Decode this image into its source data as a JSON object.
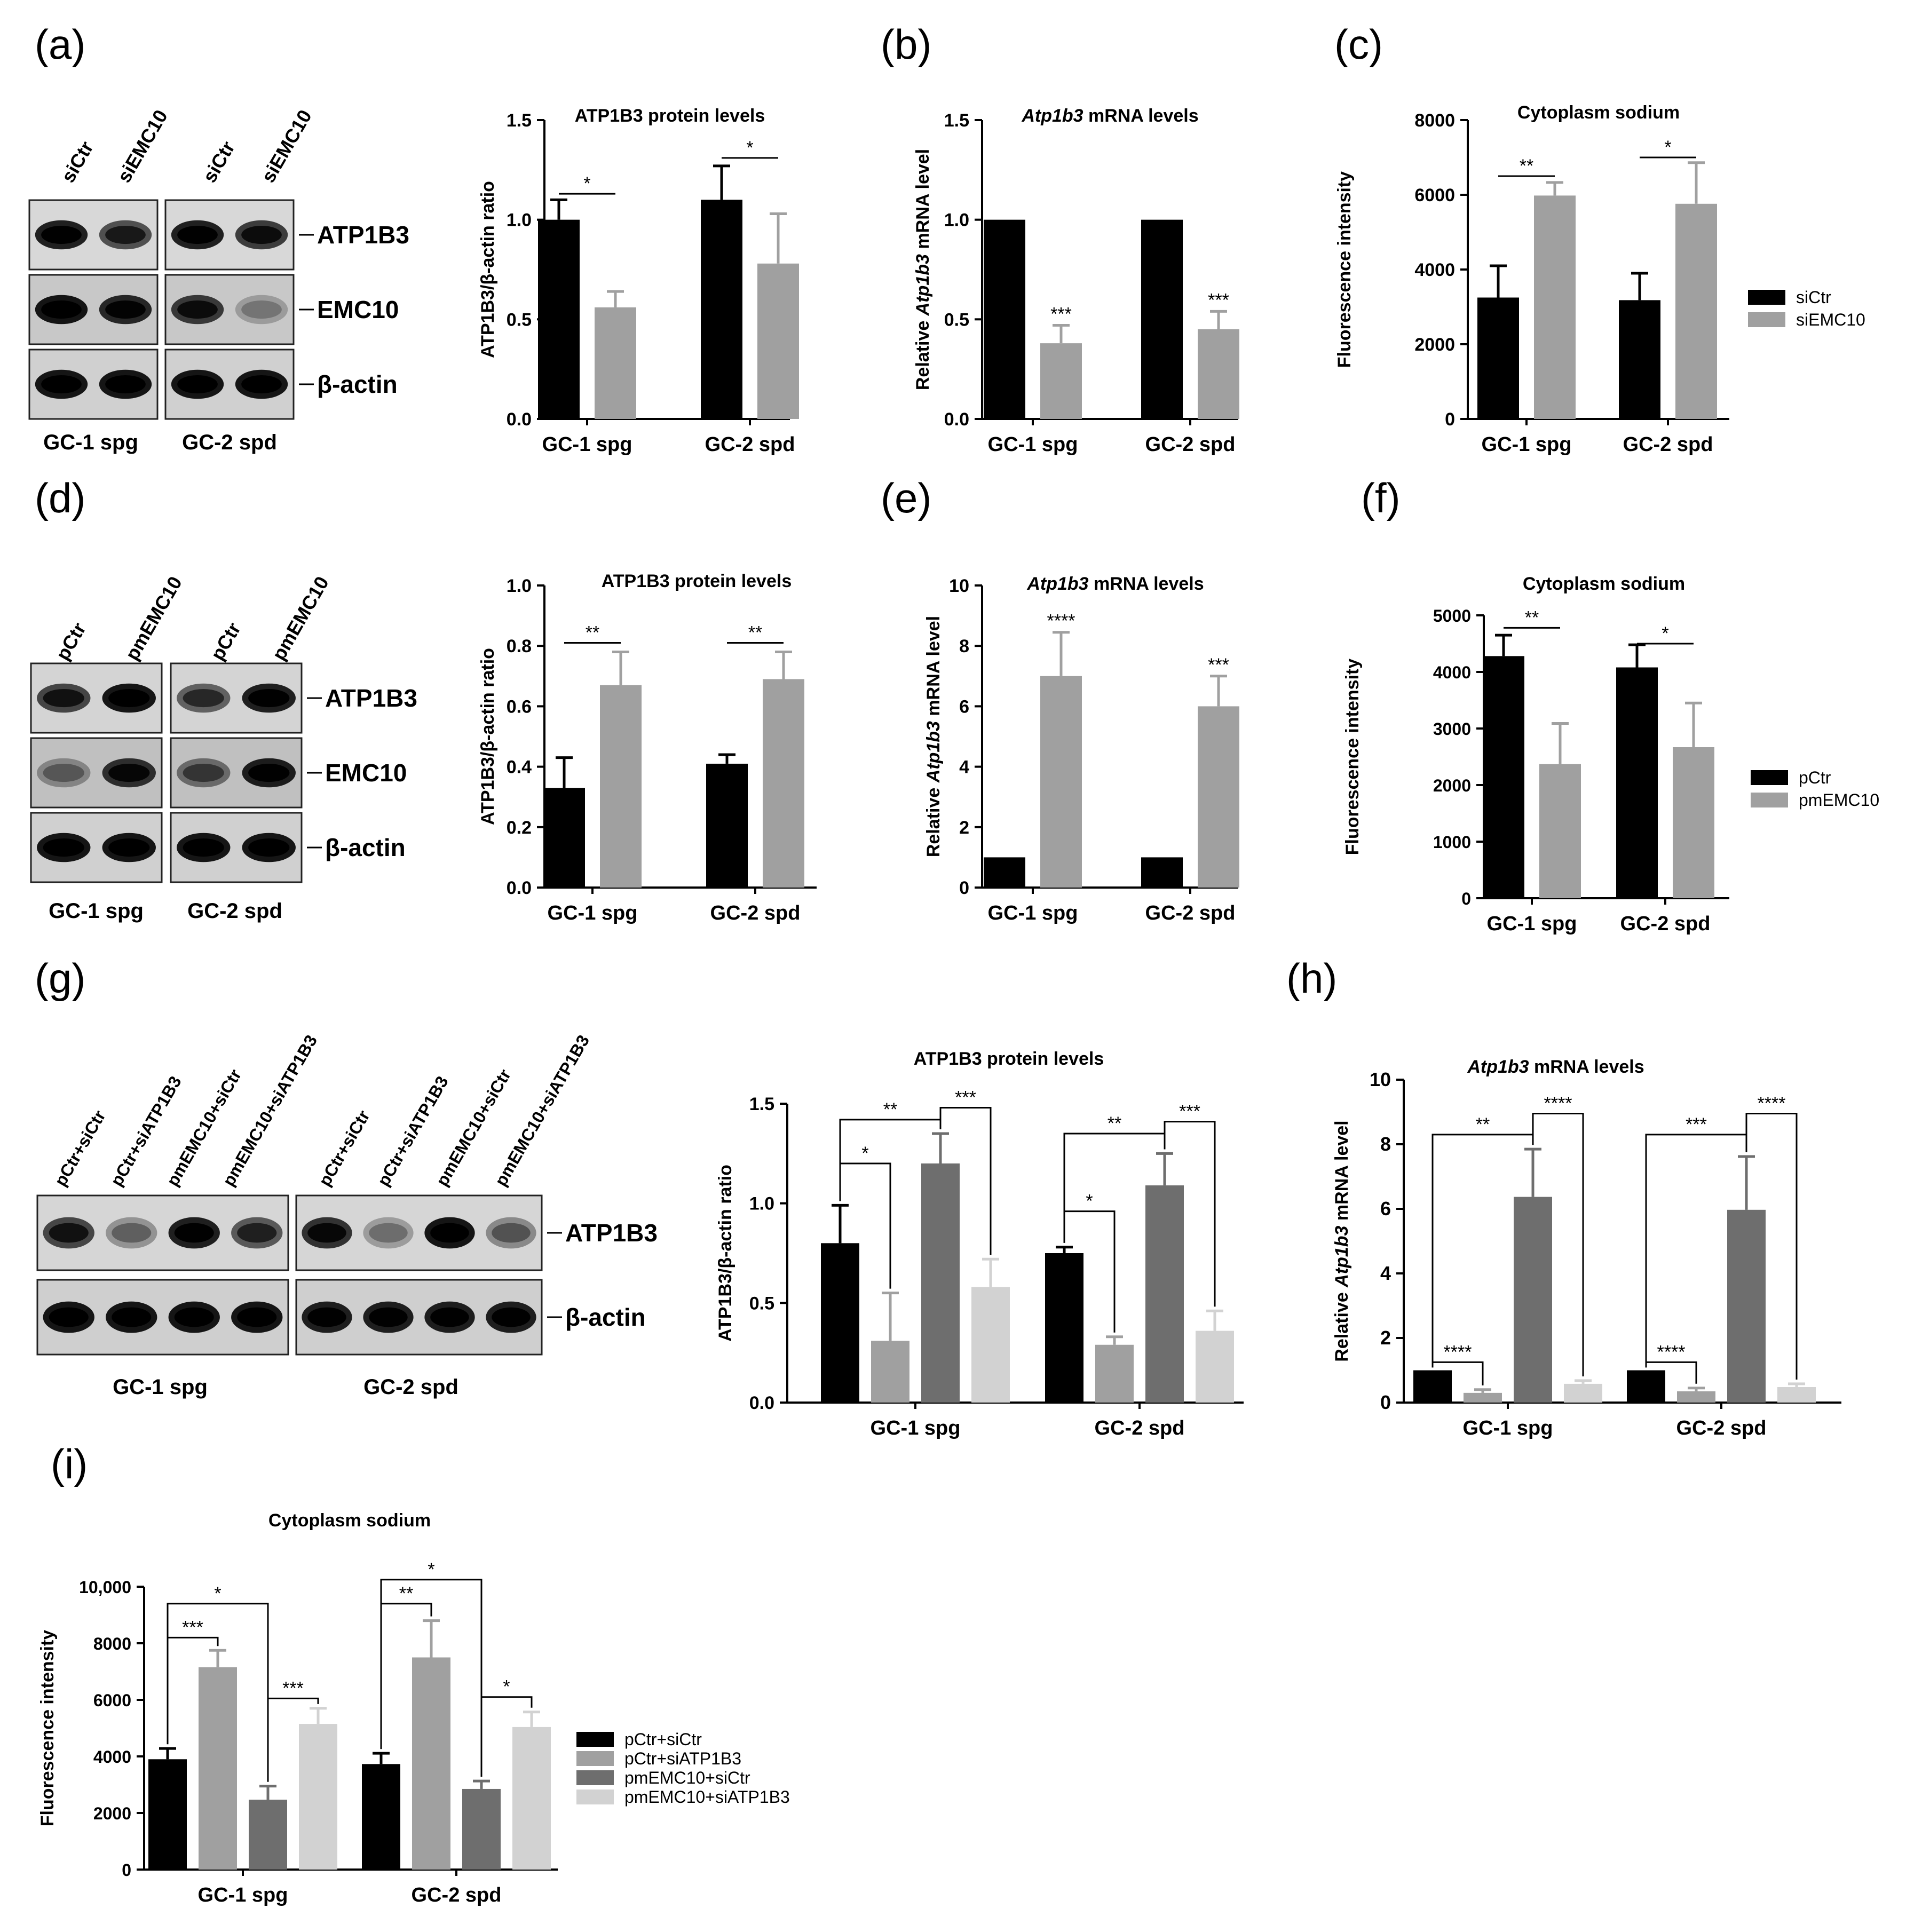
{
  "panel_labels": [
    "(a)",
    "(b)",
    "(c)",
    "(d)",
    "(e)",
    "(f)",
    "(g)",
    "(h)",
    "(i)"
  ],
  "blots": {
    "a": {
      "lanes": [
        "siCtr",
        "siEMC10",
        "siCtr",
        "siEMC10"
      ],
      "bands": [
        "ATP1B3",
        "EMC10",
        "β-actin"
      ],
      "groups": [
        "GC-1 spg",
        "GC-2 spd"
      ]
    },
    "d": {
      "lanes": [
        "pCtr",
        "pmEMC10",
        "pCtr",
        "pmEMC10"
      ],
      "bands": [
        "ATP1B3",
        "EMC10",
        "β-actin"
      ],
      "groups": [
        "GC-1 spg",
        "GC-2 spd"
      ]
    },
    "g": {
      "lanes": [
        "pCtr+siCtr",
        "pCtr+siATP1B3",
        "pmEMC10+siCtr",
        "pmEMC10+siATP1B3",
        "pCtr+siCtr",
        "pCtr+siATP1B3",
        "pmEMC10+siCtr",
        "pmEMC10+siATP1B3"
      ],
      "bands": [
        "ATP1B3",
        "β-actin"
      ],
      "groups": [
        "GC-1 spg",
        "GC-2 spd"
      ]
    }
  },
  "chart_data": [
    {
      "panel": "a",
      "type": "bar",
      "title": "ATP1B3 protein levels",
      "ylabel": "ATP1B3/β-actin ratio",
      "ylim": [
        0,
        1.5
      ],
      "ticks": [
        0.0,
        0.5,
        1.0,
        1.5
      ],
      "tick_labels": [
        "0.0",
        "0.5",
        "1.0",
        "1.5"
      ],
      "categories": [
        "GC-1 spg",
        "GC-2 spd"
      ],
      "series": [
        {
          "color": "#000000",
          "values": [
            1.0,
            1.1
          ],
          "errors": [
            0.1,
            0.17
          ]
        },
        {
          "color": "#a0a0a0",
          "values": [
            0.56,
            0.78
          ],
          "errors": [
            0.08,
            0.25
          ]
        }
      ],
      "annotations": [
        {
          "cat": 0,
          "from": 0,
          "to": 1,
          "y": 1.13,
          "text": "*"
        },
        {
          "cat": 1,
          "from": 0,
          "to": 1,
          "y": 1.31,
          "text": "*"
        }
      ]
    },
    {
      "panel": "b",
      "type": "bar",
      "title": "Atp1b3 mRNA levels",
      "ylabel": "Relative Atp1b3 mRNA level",
      "ylim": [
        0,
        1.5
      ],
      "ticks": [
        0.0,
        0.5,
        1.0,
        1.5
      ],
      "tick_labels": [
        "0.0",
        "0.5",
        "1.0",
        "1.5"
      ],
      "categories": [
        "GC-1 spg",
        "GC-2 spd"
      ],
      "series": [
        {
          "color": "#000000",
          "values": [
            1.0,
            1.0
          ],
          "errors": [
            0,
            0
          ]
        },
        {
          "color": "#a0a0a0",
          "values": [
            0.38,
            0.45
          ],
          "errors": [
            0.09,
            0.09
          ]
        }
      ],
      "stars": [
        {
          "cat": 0,
          "series": 1,
          "text": "***"
        },
        {
          "cat": 1,
          "series": 1,
          "text": "***"
        }
      ]
    },
    {
      "panel": "c",
      "type": "bar",
      "title": "Cytoplasm sodium",
      "ylabel": "Fluorescence intensity",
      "ylim": [
        0,
        8000
      ],
      "ticks": [
        0,
        2000,
        4000,
        6000,
        8000
      ],
      "tick_labels": [
        "0",
        "2000",
        "4000",
        "6000",
        "8000"
      ],
      "categories": [
        "GC-1 spg",
        "GC-2 spd"
      ],
      "legend": [
        "siCtr",
        "siEMC10"
      ],
      "series": [
        {
          "name": "siCtr",
          "color": "#000000",
          "values": [
            3250,
            3180
          ],
          "errors": [
            850,
            720
          ]
        },
        {
          "name": "siEMC10",
          "color": "#a0a0a0",
          "values": [
            5980,
            5760
          ],
          "errors": [
            350,
            1100
          ]
        }
      ],
      "annotations": [
        {
          "cat": 0,
          "from": 0,
          "to": 1,
          "y": 6500,
          "text": "**"
        },
        {
          "cat": 1,
          "from": 0,
          "to": 1,
          "y": 7000,
          "text": "*"
        }
      ]
    },
    {
      "panel": "d",
      "type": "bar",
      "title": "ATP1B3 protein levels",
      "ylabel": "ATP1B3/β-actin ratio",
      "ylim": [
        0,
        1.0
      ],
      "ticks": [
        0.0,
        0.2,
        0.4,
        0.6,
        0.8,
        1.0
      ],
      "tick_labels": [
        "0.0",
        "0.2",
        "0.4",
        "0.6",
        "0.8",
        "1.0"
      ],
      "categories": [
        "GC-1 spg",
        "GC-2 spd"
      ],
      "series": [
        {
          "color": "#000000",
          "values": [
            0.33,
            0.41
          ],
          "errors": [
            0.1,
            0.03
          ]
        },
        {
          "color": "#a0a0a0",
          "values": [
            0.67,
            0.69
          ],
          "errors": [
            0.11,
            0.09
          ]
        }
      ],
      "annotations": [
        {
          "cat": 0,
          "from": 0,
          "to": 1,
          "y": 0.81,
          "text": "**"
        },
        {
          "cat": 1,
          "from": 0,
          "to": 1,
          "y": 0.81,
          "text": "**"
        }
      ]
    },
    {
      "panel": "e",
      "type": "bar",
      "title": "Atp1b3 mRNA levels",
      "ylabel": "Relative Atp1b3 mRNA level",
      "ylim": [
        0,
        10
      ],
      "ticks": [
        0,
        2,
        4,
        6,
        8,
        10
      ],
      "tick_labels": [
        "0",
        "2",
        "4",
        "6",
        "8",
        "10"
      ],
      "categories": [
        "GC-1 spg",
        "GC-2 spd"
      ],
      "series": [
        {
          "color": "#000000",
          "values": [
            1.0,
            1.0
          ],
          "errors": [
            0,
            0
          ]
        },
        {
          "color": "#a0a0a0",
          "values": [
            7.0,
            6.0
          ],
          "errors": [
            1.45,
            1.0
          ]
        }
      ],
      "stars": [
        {
          "cat": 0,
          "series": 1,
          "text": "****"
        },
        {
          "cat": 1,
          "series": 1,
          "text": "***"
        }
      ]
    },
    {
      "panel": "f",
      "type": "bar",
      "title": "Cytoplasm sodium",
      "ylabel": "Fluorescence intensity",
      "ylim": [
        0,
        5000
      ],
      "ticks": [
        0,
        1000,
        2000,
        3000,
        4000,
        5000
      ],
      "tick_labels": [
        "0",
        "1000",
        "2000",
        "3000",
        "4000",
        "5000"
      ],
      "categories": [
        "GC-1 spg",
        "GC-2 spd"
      ],
      "legend": [
        "pCtr",
        "pmEMC10"
      ],
      "series": [
        {
          "name": "pCtr",
          "color": "#000000",
          "values": [
            4280,
            4080
          ],
          "errors": [
            370,
            400
          ]
        },
        {
          "name": "pmEMC10",
          "color": "#a0a0a0",
          "values": [
            2370,
            2670
          ],
          "errors": [
            720,
            780
          ]
        }
      ],
      "annotations": [
        {
          "cat": 0,
          "from": 0,
          "to": 1,
          "y": 4780,
          "text": "**"
        },
        {
          "cat": 1,
          "from": 0,
          "to": 1,
          "y": 4500,
          "text": "*"
        }
      ]
    },
    {
      "panel": "g",
      "type": "bar",
      "title": "ATP1B3 protein levels",
      "ylabel": "ATP1B3/β-actin ratio",
      "ylim": [
        0,
        1.5
      ],
      "ticks": [
        0.0,
        0.5,
        1.0,
        1.5
      ],
      "tick_labels": [
        "0.0",
        "0.5",
        "1.0",
        "1.5"
      ],
      "categories": [
        "GC-1 spg",
        "GC-2 spd"
      ],
      "series": [
        {
          "color": "#000000",
          "values": [
            0.8,
            0.75
          ],
          "errors": [
            0.19,
            0.03
          ]
        },
        {
          "color": "#a0a0a0",
          "values": [
            0.31,
            0.29
          ],
          "errors": [
            0.24,
            0.04
          ]
        },
        {
          "color": "#6e6e6e",
          "values": [
            1.2,
            1.09
          ],
          "errors": [
            0.15,
            0.16
          ]
        },
        {
          "color": "#d2d2d2",
          "values": [
            0.58,
            0.36
          ],
          "errors": [
            0.14,
            0.1
          ]
        }
      ],
      "annotations": [
        {
          "cat": 0,
          "from": 0,
          "to": 1,
          "y": 1.2,
          "text": "*"
        },
        {
          "cat": 0,
          "from": 0,
          "to": 2,
          "y": 1.42,
          "text": "**"
        },
        {
          "cat": 0,
          "from": 2,
          "to": 3,
          "y": 1.48,
          "text": "***"
        },
        {
          "cat": 1,
          "from": 0,
          "to": 1,
          "y": 0.96,
          "text": "*"
        },
        {
          "cat": 1,
          "from": 0,
          "to": 2,
          "y": 1.35,
          "text": "**"
        },
        {
          "cat": 1,
          "from": 2,
          "to": 3,
          "y": 1.41,
          "text": "***"
        }
      ]
    },
    {
      "panel": "h",
      "type": "bar",
      "title": "Atp1b3 mRNA levels",
      "ylabel": "Relative Atp1b3 mRNA level",
      "ylim": [
        0,
        10
      ],
      "ticks": [
        0,
        2,
        4,
        6,
        8,
        10
      ],
      "tick_labels": [
        "0",
        "2",
        "4",
        "6",
        "8",
        "10"
      ],
      "categories": [
        "GC-1 spg",
        "GC-2 spd"
      ],
      "series": [
        {
          "color": "#000000",
          "values": [
            1.0,
            1.0
          ],
          "errors": [
            0,
            0
          ]
        },
        {
          "color": "#a0a0a0",
          "values": [
            0.3,
            0.35
          ],
          "errors": [
            0.1,
            0.1
          ]
        },
        {
          "color": "#6e6e6e",
          "values": [
            6.37,
            5.97
          ],
          "errors": [
            1.48,
            1.65
          ]
        },
        {
          "color": "#d2d2d2",
          "values": [
            0.58,
            0.48
          ],
          "errors": [
            0.1,
            0.1
          ]
        }
      ],
      "annotations": [
        {
          "cat": 0,
          "from": 0,
          "to": 1,
          "y": 1.25,
          "text": "****"
        },
        {
          "cat": 0,
          "from": 0,
          "to": 2,
          "y": 8.3,
          "text": "**"
        },
        {
          "cat": 0,
          "from": 2,
          "to": 3,
          "y": 8.95,
          "text": "****"
        },
        {
          "cat": 1,
          "from": 0,
          "to": 1,
          "y": 1.25,
          "text": "****"
        },
        {
          "cat": 1,
          "from": 0,
          "to": 2,
          "y": 8.3,
          "text": "***"
        },
        {
          "cat": 1,
          "from": 2,
          "to": 3,
          "y": 8.95,
          "text": "****"
        }
      ]
    },
    {
      "panel": "i",
      "type": "bar",
      "title": "Cytoplasm sodium",
      "ylabel": "Fluorescence intensity",
      "ylim": [
        0,
        10000
      ],
      "ticks": [
        0,
        2000,
        4000,
        6000,
        8000,
        10000
      ],
      "tick_labels": [
        "0",
        "2000",
        "4000",
        "6000",
        "8000",
        "10,000"
      ],
      "categories": [
        "GC-1 spg",
        "GC-2 spd"
      ],
      "legend": [
        "pCtr+siCtr",
        "pCtr+siATP1B3",
        "pmEMC10+siCtr",
        "pmEMC10+siATP1B3"
      ],
      "series": [
        {
          "name": "pCtr+siCtr",
          "color": "#000000",
          "values": [
            3900,
            3730
          ],
          "errors": [
            380,
            380
          ]
        },
        {
          "name": "pCtr+siATP1B3",
          "color": "#a0a0a0",
          "values": [
            7150,
            7500
          ],
          "errors": [
            600,
            1300
          ]
        },
        {
          "name": "pmEMC10+siCtr",
          "color": "#6e6e6e",
          "values": [
            2470,
            2850
          ],
          "errors": [
            480,
            280
          ]
        },
        {
          "name": "pmEMC10+siATP1B3",
          "color": "#d2d2d2",
          "values": [
            5150,
            5040
          ],
          "errors": [
            550,
            530
          ]
        }
      ],
      "annotations": [
        {
          "cat": 0,
          "from": 0,
          "to": 1,
          "y": 8200,
          "text": "***"
        },
        {
          "cat": 0,
          "from": 0,
          "to": 2,
          "y": 9400,
          "text": "*"
        },
        {
          "cat": 0,
          "from": 2,
          "to": 3,
          "y": 6050,
          "text": "***"
        },
        {
          "cat": 1,
          "from": 0,
          "to": 1,
          "y": 9400,
          "text": "**"
        },
        {
          "cat": 1,
          "from": 0,
          "to": 2,
          "y": 10250,
          "text": "*"
        },
        {
          "cat": 1,
          "from": 2,
          "to": 3,
          "y": 6100,
          "text": "*"
        }
      ]
    }
  ]
}
